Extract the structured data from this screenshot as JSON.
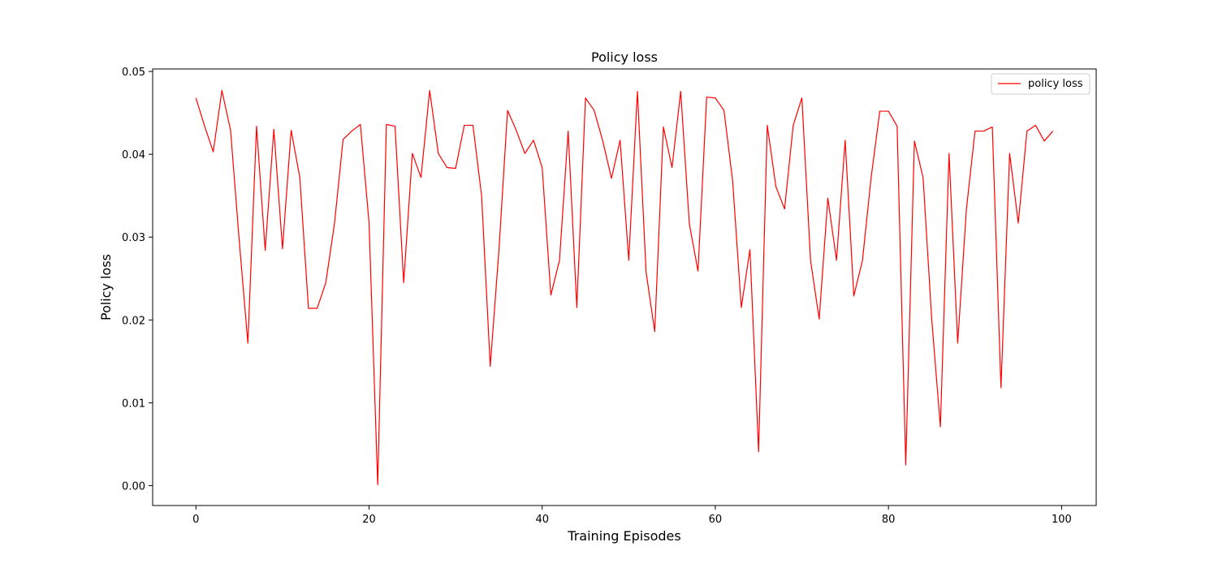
{
  "chart_data": {
    "type": "line",
    "title": "Policy loss",
    "xlabel": "Training Episodes",
    "ylabel": "Policy loss",
    "xlim": [
      -5,
      104
    ],
    "ylim": [
      -0.0024,
      0.0503
    ],
    "xticks": [
      0,
      20,
      40,
      60,
      80,
      100
    ],
    "yticks": [
      0.0,
      0.01,
      0.02,
      0.03,
      0.04,
      0.05
    ],
    "ytick_labels": [
      "0.00",
      "0.01",
      "0.02",
      "0.03",
      "0.04",
      "0.05"
    ],
    "grid": false,
    "legend_position": "top-right",
    "series": [
      {
        "name": "policy loss",
        "color": "#ff0000",
        "x": [
          0,
          1,
          2,
          3,
          4,
          5,
          6,
          7,
          8,
          9,
          10,
          11,
          12,
          13,
          14,
          15,
          16,
          17,
          18,
          19,
          20,
          21,
          22,
          23,
          24,
          25,
          26,
          27,
          28,
          29,
          30,
          31,
          32,
          33,
          34,
          35,
          36,
          37,
          38,
          39,
          40,
          41,
          42,
          43,
          44,
          45,
          46,
          47,
          48,
          49,
          50,
          51,
          52,
          53,
          54,
          55,
          56,
          57,
          58,
          59,
          60,
          61,
          62,
          63,
          64,
          65,
          66,
          67,
          68,
          69,
          70,
          71,
          72,
          73,
          74,
          75,
          76,
          77,
          78,
          79,
          80,
          81,
          82,
          83,
          84,
          85,
          86,
          87,
          88,
          89,
          90,
          91,
          92,
          93,
          94,
          95,
          96,
          97,
          98,
          99
        ],
        "values": [
          0.0468,
          0.0434,
          0.0403,
          0.0477,
          0.0429,
          0.0296,
          0.0172,
          0.0434,
          0.0284,
          0.043,
          0.0286,
          0.0429,
          0.0372,
          0.0214,
          0.0214,
          0.0245,
          0.0316,
          0.0418,
          0.0428,
          0.0436,
          0.0317,
          0.0001,
          0.0436,
          0.0434,
          0.0245,
          0.0401,
          0.0372,
          0.0477,
          0.0401,
          0.0384,
          0.0383,
          0.0435,
          0.0435,
          0.035,
          0.0144,
          0.0284,
          0.0453,
          0.0429,
          0.0401,
          0.0417,
          0.0384,
          0.023,
          0.0272,
          0.0428,
          0.0215,
          0.0468,
          0.0453,
          0.0416,
          0.0371,
          0.0417,
          0.0272,
          0.0476,
          0.0258,
          0.0186,
          0.0433,
          0.0384,
          0.0476,
          0.0316,
          0.0259,
          0.0469,
          0.0468,
          0.0453,
          0.0368,
          0.0215,
          0.0285,
          0.0041,
          0.0435,
          0.0361,
          0.0334,
          0.0435,
          0.0468,
          0.0272,
          0.0201,
          0.0347,
          0.0272,
          0.0417,
          0.0229,
          0.0272,
          0.0372,
          0.0452,
          0.0452,
          0.0434,
          0.0025,
          0.0416,
          0.0372,
          0.0201,
          0.0071,
          0.0401,
          0.0172,
          0.0333,
          0.0428,
          0.0428,
          0.0433,
          0.0118,
          0.0401,
          0.0317,
          0.0428,
          0.0435,
          0.0416,
          0.0428
        ]
      }
    ]
  }
}
